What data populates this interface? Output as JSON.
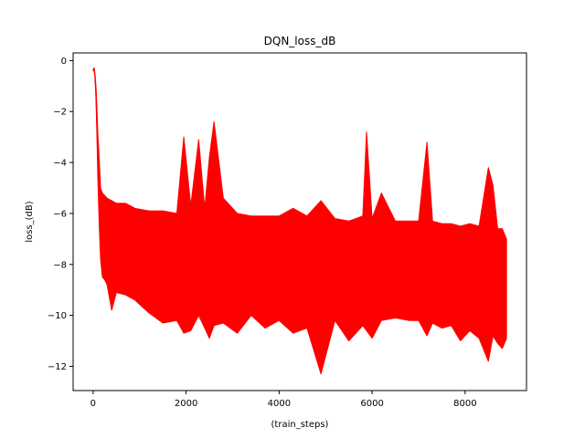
{
  "chart_data": {
    "type": "line",
    "title": "DQN_loss_dB",
    "xlabel": "(train_steps)",
    "ylabel": "loss_(dB)",
    "xlim": [
      -430,
      9320
    ],
    "ylim": [
      -12.95,
      0.3
    ],
    "xticks": [
      0,
      2000,
      4000,
      6000,
      8000
    ],
    "yticks": [
      0,
      -2,
      -4,
      -6,
      -8,
      -10,
      -12
    ],
    "grid": false,
    "legend": "none",
    "colors": {
      "line": "#ff0000",
      "axes": "#000000",
      "background": "#ffffff"
    },
    "series": [
      {
        "color": "#ff0000",
        "x": [
          0,
          20,
          40,
          60,
          80,
          100,
          130,
          160,
          200,
          250,
          300,
          400,
          500,
          700,
          900,
          1200,
          1500,
          1800,
          1950,
          2100,
          2270,
          2400,
          2500,
          2600,
          2800,
          3100,
          3400,
          3700,
          4000,
          4300,
          4600,
          4900,
          5200,
          5500,
          5800,
          5880,
          6000,
          6200,
          6500,
          6800,
          7000,
          7180,
          7300,
          7500,
          7700,
          7900,
          8100,
          8300,
          8500,
          8600,
          8700,
          8800,
          8890
        ],
        "y": [
          -0.4,
          -0.3,
          -0.6,
          -1.2,
          -2.2,
          -3.5,
          -5.0,
          -6.0,
          -6.8,
          -7.0,
          -7.2,
          -7.3,
          -7.3,
          -7.4,
          -7.5,
          -7.6,
          -7.6,
          -7.7,
          -7.5,
          -7.6,
          -7.4,
          -7.7,
          -7.6,
          -7.5,
          -7.7,
          -7.7,
          -7.8,
          -7.7,
          -7.8,
          -7.8,
          -7.7,
          -7.8,
          -7.8,
          -7.9,
          -7.8,
          -7.5,
          -7.9,
          -7.9,
          -8.0,
          -7.9,
          -8.0,
          -7.8,
          -8.0,
          -8.0,
          -8.0,
          -8.1,
          -8.0,
          -8.1,
          -8.1,
          -8.0,
          -8.1,
          -8.1,
          -8.0
        ],
        "band_upper": [
          -0.4,
          -0.3,
          -0.6,
          -1.0,
          -1.8,
          -2.8,
          -3.8,
          -5.0,
          -5.2,
          -5.3,
          -5.4,
          -5.5,
          -5.6,
          -5.6,
          -5.8,
          -5.9,
          -5.9,
          -6.0,
          -3.0,
          -5.7,
          -3.1,
          -5.8,
          -3.8,
          -2.4,
          -5.4,
          -6.0,
          -6.1,
          -6.1,
          -6.1,
          -5.8,
          -6.1,
          -5.5,
          -6.2,
          -6.3,
          -6.1,
          -2.8,
          -6.2,
          -5.2,
          -6.3,
          -6.3,
          -6.3,
          -3.2,
          -6.3,
          -6.4,
          -6.4,
          -6.5,
          -6.4,
          -6.5,
          -4.2,
          -4.9,
          -6.6,
          -6.6,
          -7.0
        ],
        "band_lower": [
          -0.4,
          -0.3,
          -0.6,
          -1.4,
          -2.8,
          -4.5,
          -6.4,
          -7.8,
          -8.5,
          -8.6,
          -8.8,
          -9.8,
          -9.1,
          -9.2,
          -9.4,
          -9.9,
          -10.3,
          -10.2,
          -10.7,
          -10.6,
          -10.0,
          -10.5,
          -10.9,
          -10.4,
          -10.3,
          -10.7,
          -10.0,
          -10.5,
          -10.2,
          -10.7,
          -10.5,
          -12.3,
          -10.2,
          -11.0,
          -10.4,
          -10.6,
          -10.9,
          -10.2,
          -10.1,
          -10.2,
          -10.2,
          -10.8,
          -10.3,
          -10.5,
          -10.4,
          -11.0,
          -10.6,
          -10.9,
          -11.8,
          -10.8,
          -11.1,
          -11.3,
          -10.9
        ]
      }
    ]
  }
}
